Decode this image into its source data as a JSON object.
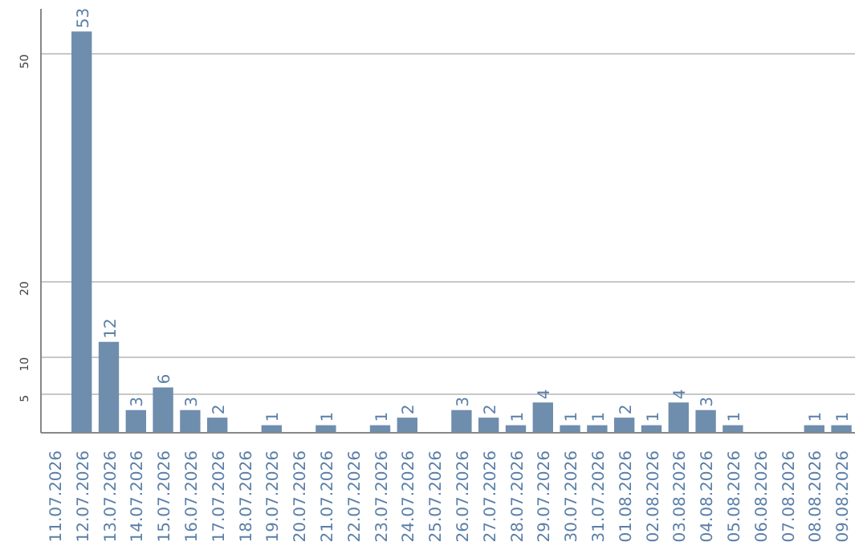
{
  "chart_data": {
    "type": "bar",
    "categories": [
      "11.07.2026",
      "12.07.2026",
      "13.07.2026",
      "14.07.2026",
      "15.07.2026",
      "16.07.2026",
      "17.07.2026",
      "18.07.2026",
      "19.07.2026",
      "20.07.2026",
      "21.07.2026",
      "22.07.2026",
      "23.07.2026",
      "24.07.2026",
      "25.07.2026",
      "26.07.2026",
      "27.07.2026",
      "28.07.2026",
      "29.07.2026",
      "30.07.2026",
      "31.07.2026",
      "01.08.2026",
      "02.08.2026",
      "03.08.2026",
      "04.08.2026",
      "05.08.2026",
      "06.08.2026",
      "07.08.2026",
      "08.08.2026",
      "09.08.2026"
    ],
    "values": [
      0,
      53,
      12,
      3,
      6,
      3,
      2,
      0,
      1,
      0,
      1,
      0,
      1,
      2,
      0,
      3,
      2,
      1,
      4,
      1,
      1,
      2,
      1,
      4,
      3,
      1,
      0,
      0,
      1,
      1
    ],
    "value_labels": [
      null,
      "53",
      "12",
      "3",
      "6",
      "3",
      "2",
      null,
      "1",
      null,
      "1",
      null,
      "1",
      "2",
      null,
      "3",
      "2",
      "1",
      "4",
      "1",
      "1",
      "2",
      "1",
      "4",
      "3",
      "1",
      null,
      null,
      "1",
      "1"
    ],
    "color": "#6f8dad",
    "ylim": [
      0,
      56
    ],
    "yticks": [
      5,
      10,
      20,
      50
    ],
    "grid": "y"
  }
}
